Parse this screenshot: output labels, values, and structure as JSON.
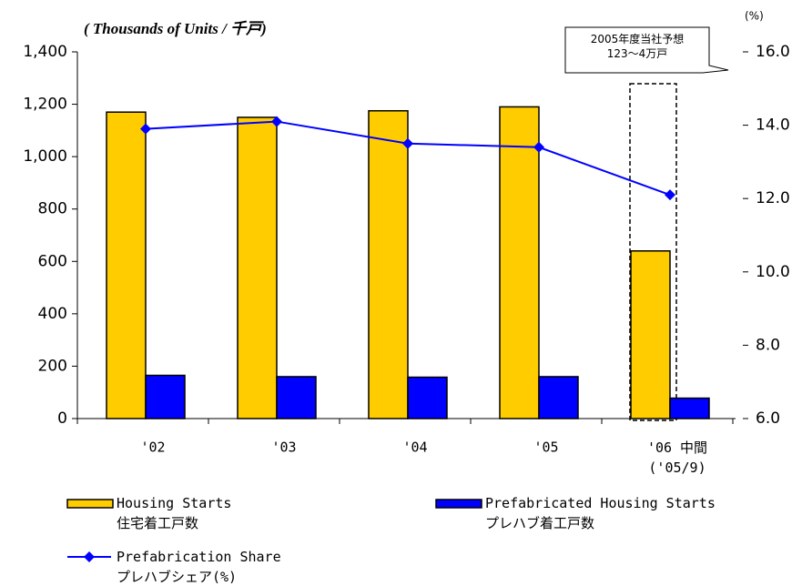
{
  "chart_data": {
    "type": "bar",
    "y_label": "( Thousands of Units / 千戸)",
    "y2_label": "(%)",
    "annotation": "2005年度当社予想\n123～4万戸",
    "categories": [
      "'02",
      "'03",
      "'04",
      "'05",
      "'06 中間\n('05/9)"
    ],
    "series": [
      {
        "name": "Housing Starts\n住宅着工戸数",
        "color": "#ffcc00",
        "values": [
          1170,
          1150,
          1175,
          1190,
          640
        ]
      },
      {
        "name": "Prefabricated Housing Starts\nプレハブ着工戸数",
        "color": "#0000ff",
        "values": [
          165,
          160,
          158,
          160,
          78
        ]
      },
      {
        "name": "Prefabrication Share\nプレハブシェア(%)",
        "type": "line",
        "axis": "y2",
        "color": "#0000ff",
        "values": [
          13.9,
          14.1,
          13.5,
          13.4,
          12.1
        ]
      }
    ],
    "ylim": [
      0,
      1400
    ],
    "yticks": [
      0,
      200,
      400,
      600,
      800,
      {
        "value": 1000,
        "label": "1,000"
      },
      {
        "value": 1200,
        "label": "1,200"
      },
      {
        "value": 1400,
        "label": "1,400"
      }
    ],
    "y2lim": [
      6,
      16
    ],
    "y2ticks": [
      {
        "value": 6,
        "label": "6.0"
      },
      {
        "value": 8,
        "label": "8.0"
      },
      {
        "value": 10,
        "label": "10.0"
      },
      {
        "value": 12,
        "label": "12.0"
      },
      {
        "value": 14,
        "label": "14.0"
      },
      {
        "value": 16,
        "label": "16.0"
      }
    ]
  }
}
